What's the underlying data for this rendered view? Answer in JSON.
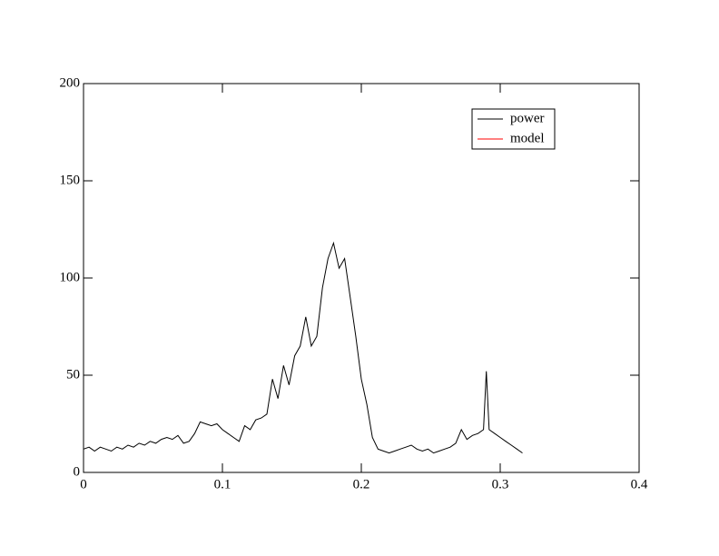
{
  "chart_data": {
    "type": "line",
    "x": [
      0,
      0.004,
      0.008,
      0.012,
      0.016,
      0.02,
      0.024,
      0.028,
      0.032,
      0.036,
      0.04,
      0.044,
      0.048,
      0.052,
      0.056,
      0.06,
      0.064,
      0.068,
      0.072,
      0.076,
      0.08,
      0.084,
      0.088,
      0.092,
      0.096,
      0.1,
      0.104,
      0.108,
      0.112,
      0.116,
      0.12,
      0.124,
      0.128,
      0.132,
      0.136,
      0.14,
      0.144,
      0.148,
      0.152,
      0.156,
      0.16,
      0.164,
      0.168,
      0.172,
      0.176,
      0.18,
      0.184,
      0.188,
      0.192,
      0.196,
      0.2,
      0.204,
      0.208,
      0.212,
      0.216,
      0.22,
      0.224,
      0.228,
      0.232,
      0.236,
      0.24,
      0.244,
      0.248,
      0.252,
      0.256,
      0.26,
      0.264,
      0.268,
      0.272,
      0.276,
      0.28,
      0.284,
      0.288,
      0.29,
      0.292,
      0.296,
      0.3,
      0.304,
      0.308,
      0.312,
      0.316
    ],
    "series": [
      {
        "name": "power",
        "color": "#000000",
        "values": [
          12,
          13,
          11,
          13,
          12,
          11,
          13,
          12,
          14,
          13,
          15,
          14,
          16,
          15,
          17,
          18,
          17,
          19,
          15,
          16,
          20,
          26,
          25,
          24,
          25,
          22,
          20,
          18,
          16,
          24,
          22,
          27,
          28,
          30,
          48,
          38,
          55,
          45,
          60,
          65,
          80,
          65,
          70,
          95,
          110,
          118,
          105,
          110,
          90,
          70,
          48,
          35,
          18,
          12,
          11,
          10,
          11,
          12,
          13,
          14,
          12,
          11,
          12,
          10,
          11,
          12,
          13,
          15,
          22,
          17,
          19,
          20,
          22,
          52,
          22,
          20,
          18,
          16,
          14,
          12,
          10
        ]
      },
      {
        "name": "model",
        "color": "#ff0000",
        "values": [
          null,
          null,
          null,
          null,
          null,
          null,
          null,
          null,
          null,
          null,
          null,
          null,
          null,
          null,
          null,
          null,
          null,
          null,
          null,
          null,
          null,
          null,
          null,
          null,
          null,
          null,
          null,
          null,
          null,
          null,
          null,
          null,
          null,
          null,
          null,
          null,
          null,
          null,
          null,
          null,
          null,
          null,
          null,
          null,
          null,
          null,
          null,
          null,
          null,
          null,
          null,
          null,
          null,
          null,
          null,
          null,
          null,
          null,
          null,
          null,
          null,
          null,
          null,
          null,
          null,
          null,
          null,
          null,
          null,
          null,
          null,
          null,
          null,
          null,
          null,
          null,
          null,
          null,
          null,
          null,
          null
        ]
      }
    ],
    "xlim": [
      0,
      0.4
    ],
    "xticks": [
      0,
      0.1,
      0.2,
      0.3,
      0.4
    ],
    "ylim": [
      0,
      200
    ],
    "yticks": [
      0,
      50,
      100,
      150,
      200
    ],
    "grid": false,
    "legend": "upper right"
  }
}
